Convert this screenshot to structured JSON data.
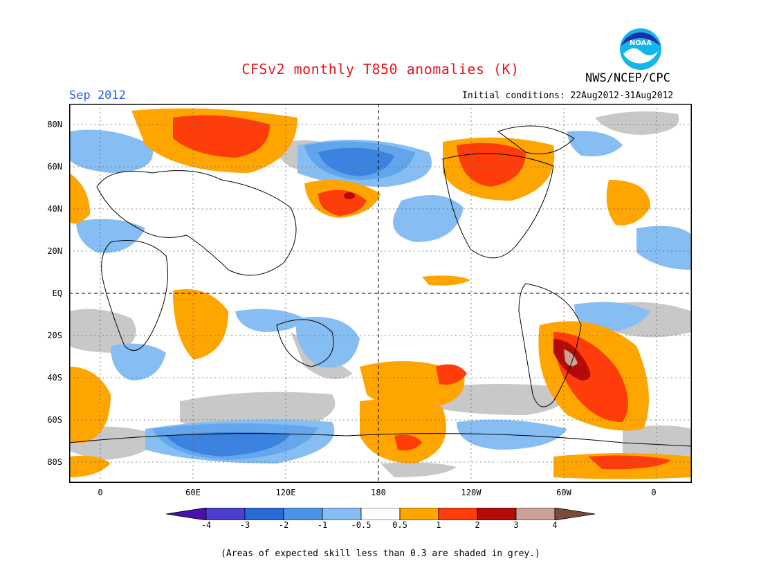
{
  "header": {
    "title": "CFSv2 monthly T850 anomalies (K)",
    "month": "Sep 2012",
    "initial_conditions": "Initial conditions: 22Aug2012-31Aug2012",
    "agency": "NWS/NCEP/CPC",
    "logo_text": "NOAA"
  },
  "axes": {
    "lat_labels": [
      "80N",
      "60N",
      "40N",
      "20N",
      "EQ",
      "20S",
      "40S",
      "60S",
      "80S"
    ],
    "lon_labels": [
      "0",
      "60E",
      "120E",
      "180",
      "120W",
      "60W",
      "0"
    ]
  },
  "colorbar": {
    "labels": [
      "-4",
      "-3",
      "-2",
      "-1",
      "-0.5",
      "0.5",
      "1",
      "2",
      "3",
      "4"
    ],
    "colors": [
      "#4a0fb0",
      "#4b3fd0",
      "#2a6ad6",
      "#4a95e8",
      "#86bdf2",
      "#ffffff",
      "#ffa500",
      "#ff3d0a",
      "#b30a0a",
      "#c8a297",
      "#7a4a3a"
    ]
  },
  "footer": {
    "note": "(Areas of expected skill less than 0.3 are shaded in grey.)"
  },
  "colors": {
    "title": "#e8141c",
    "month": "#2a5ce6",
    "skill_grey": "#c8c8c8"
  }
}
